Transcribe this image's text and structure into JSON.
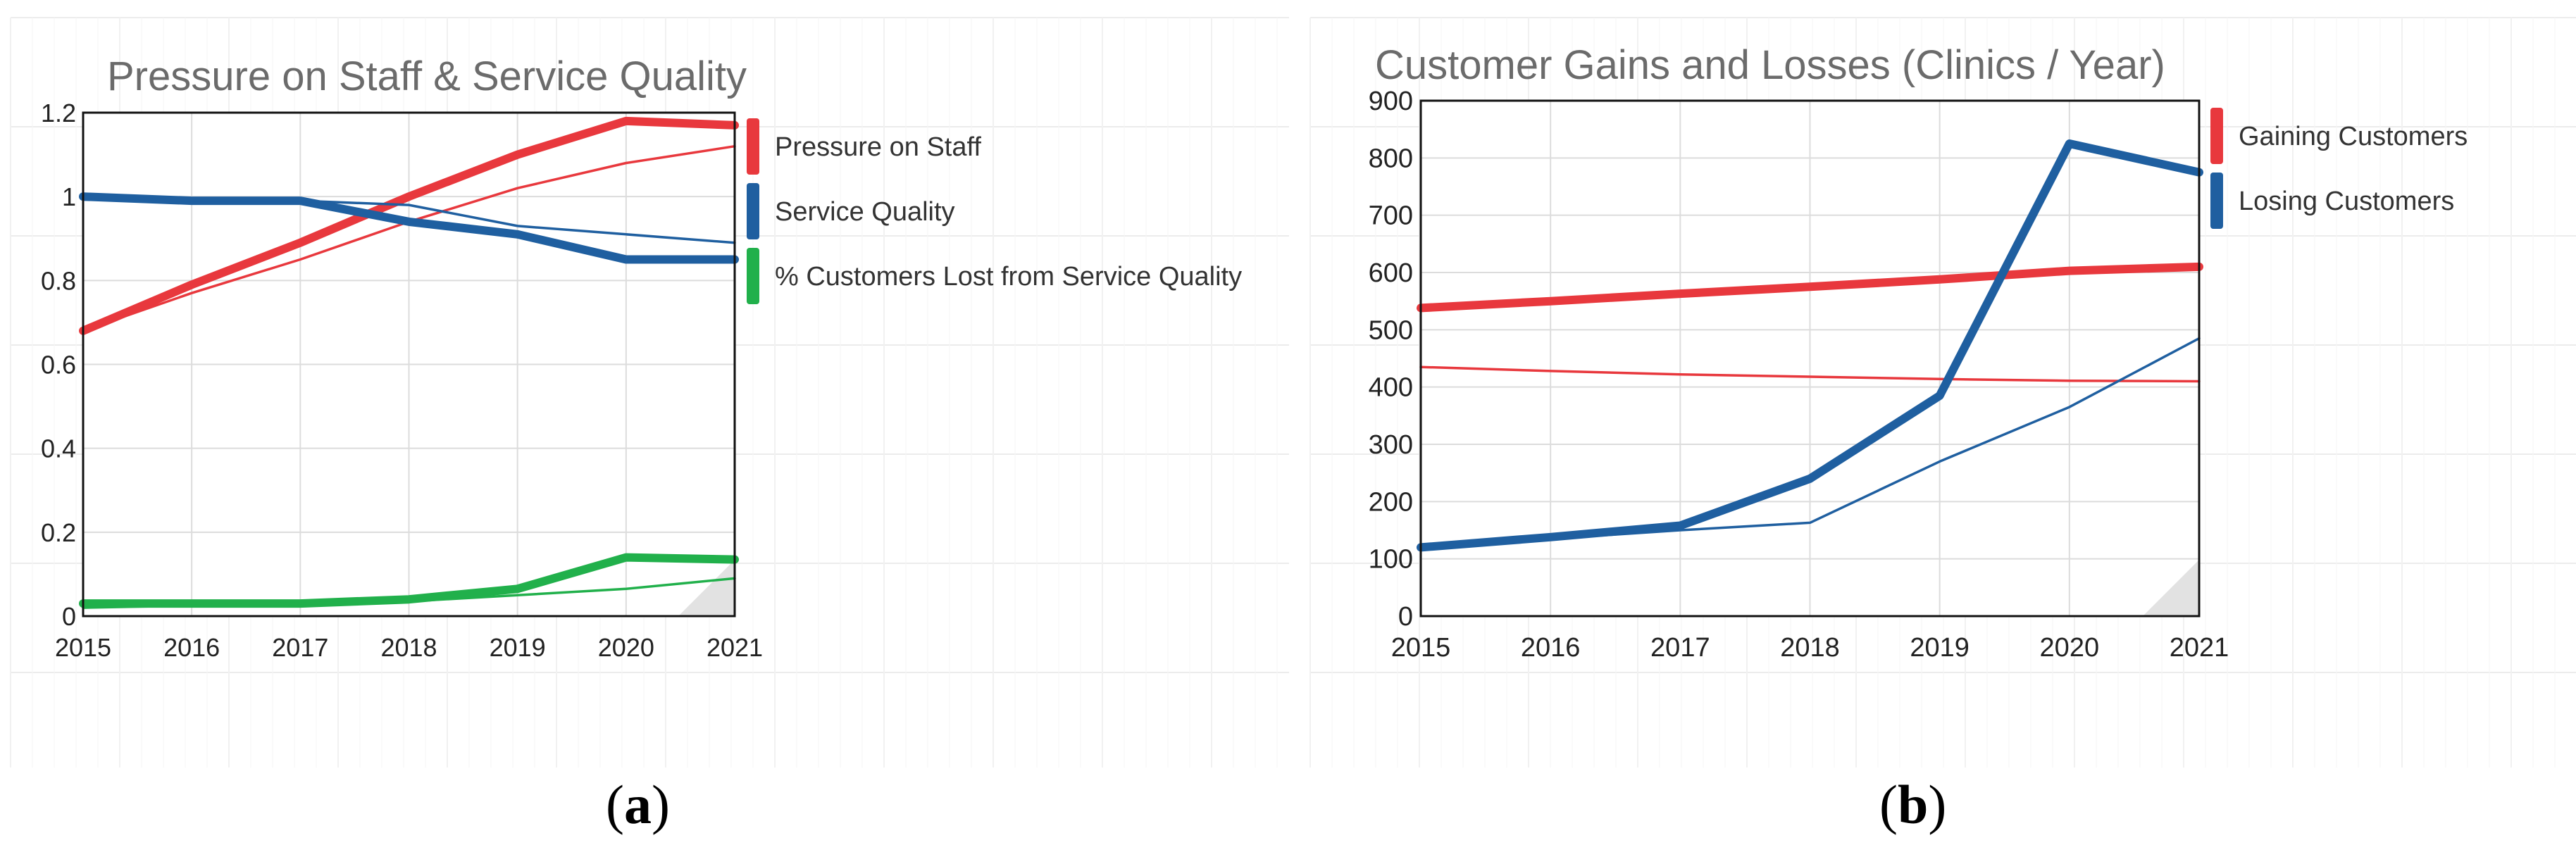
{
  "chart_data": [
    {
      "type": "line",
      "title": "Pressure on Staff & Service Quality",
      "x": [
        2015,
        2016,
        2017,
        2018,
        2019,
        2020,
        2021
      ],
      "xlim": [
        2015,
        2021
      ],
      "ylim": [
        0,
        1.2
      ],
      "y_ticks": [
        "0",
        "0.2",
        "0.4",
        "0.6",
        "0.8",
        "1",
        "1.2"
      ],
      "grid": true,
      "legend_position": "right",
      "series": [
        {
          "name": "Pressure on Staff",
          "color": "#e8383d",
          "style": "thick",
          "values": [
            0.68,
            0.79,
            0.89,
            1.0,
            1.1,
            1.18,
            1.17
          ]
        },
        {
          "color": "#e8383d",
          "style": "thin",
          "values": [
            0.68,
            0.77,
            0.85,
            0.94,
            1.02,
            1.08,
            1.12
          ]
        },
        {
          "name": "Service Quality",
          "color": "#1f5fa0",
          "style": "thick",
          "values": [
            1.0,
            0.99,
            0.99,
            0.94,
            0.91,
            0.85,
            0.85
          ]
        },
        {
          "color": "#1f5fa0",
          "style": "thin",
          "values": [
            1.0,
            0.99,
            0.99,
            0.98,
            0.93,
            0.91,
            0.89
          ]
        },
        {
          "name": "% Customers Lost from Service Quality",
          "color": "#21b04b",
          "style": "thick",
          "values": [
            0.03,
            0.03,
            0.03,
            0.04,
            0.065,
            0.14,
            0.135
          ]
        },
        {
          "color": "#21b04b",
          "style": "thin",
          "values": [
            0.02,
            0.025,
            0.03,
            0.035,
            0.05,
            0.065,
            0.09
          ]
        }
      ]
    },
    {
      "type": "line",
      "title": "Customer Gains and Losses (Clinics / Year)",
      "x": [
        2015,
        2016,
        2017,
        2018,
        2019,
        2020,
        2021
      ],
      "xlim": [
        2015,
        2021
      ],
      "ylim": [
        0,
        900
      ],
      "y_ticks": [
        "0",
        "100",
        "200",
        "300",
        "400",
        "500",
        "600",
        "700",
        "800",
        "900"
      ],
      "grid": true,
      "legend_position": "right",
      "series": [
        {
          "name": "Gaining Customers",
          "color": "#e8383d",
          "style": "thick",
          "values": [
            538,
            550,
            563,
            575,
            588,
            603,
            610
          ]
        },
        {
          "color": "#e8383d",
          "style": "thin",
          "values": [
            435,
            428,
            422,
            418,
            414,
            411,
            410
          ]
        },
        {
          "name": "Losing Customers",
          "color": "#1f5fa0",
          "style": "thick",
          "values": [
            120,
            138,
            158,
            240,
            385,
            825,
            775
          ]
        },
        {
          "color": "#1f5fa0",
          "style": "thin",
          "values": [
            120,
            135,
            150,
            163,
            270,
            365,
            485
          ]
        }
      ]
    }
  ],
  "subfigure_labels": [
    "a",
    "b"
  ]
}
